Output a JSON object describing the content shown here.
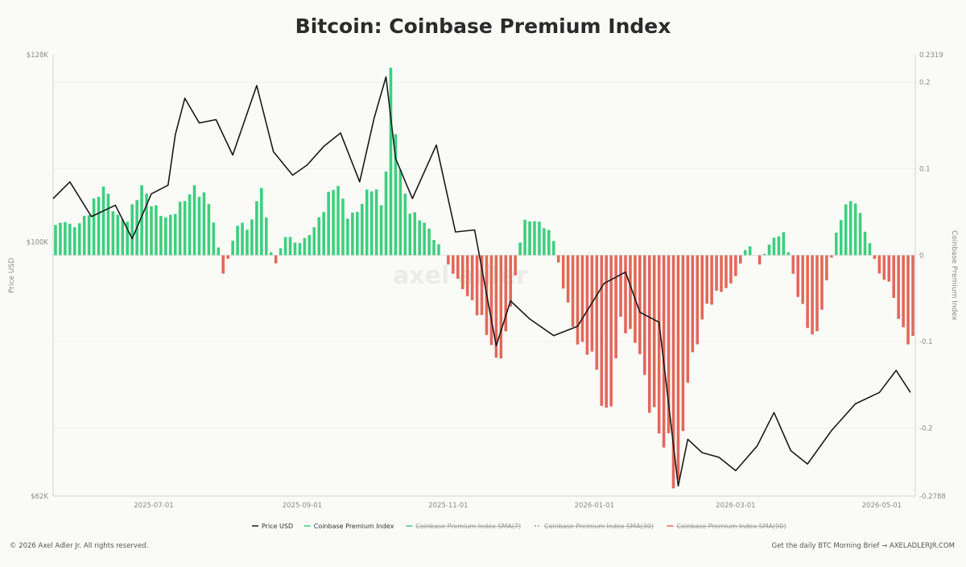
{
  "page": {
    "title": "Bitcoin: Coinbase Premium Index",
    "footer_left": "© 2026 Axel Adler Jr. All rights reserved.",
    "footer_right": "Get the daily BTC Morning Brief → AXELADLERJR.COM",
    "watermark": "axel adler"
  },
  "chart_data": {
    "type": "line+bar",
    "title": "Bitcoin: Coinbase Premium Index",
    "x_ticks": [
      "2025-07-01",
      "2025-09-01",
      "2025-11-01",
      "2026-01-01",
      "2026-03-01",
      "2026-05-01"
    ],
    "x_range": [
      "2025-05-20",
      "2026-05-15"
    ],
    "y_left": {
      "label": "Price USD",
      "ticks": [
        "$62K",
        "$100K",
        "$128K"
      ],
      "range": [
        62000,
        128000
      ]
    },
    "y_right": {
      "label": "Coinbase Premium Index",
      "ticks": [
        "0.2319",
        "0.2",
        "0.1",
        "0",
        "-0.1",
        "-0.2",
        "-0.2788"
      ],
      "range": [
        -0.2788,
        0.2319
      ]
    },
    "legend": [
      {
        "name": "Price USD",
        "color": "#1a1a1a",
        "active": true
      },
      {
        "name": "Coinbase Premium Index",
        "color": "#3ccf7e",
        "active": true
      },
      {
        "name": "Coinbase Premium Index SMA(7)",
        "color": "#3ccf7e",
        "active": false
      },
      {
        "name": "Coinbase Premium Index SMA(30)",
        "color": "#999999",
        "active": false
      },
      {
        "name": "Coinbase Premium Index SMA(90)",
        "color": "#e2685a",
        "active": false
      }
    ],
    "colors": {
      "positive": "#3ccf7e",
      "negative": "#e2685a",
      "price": "#1a1a1a"
    },
    "price_series": {
      "name": "Price USD",
      "points": [
        [
          "2025-05-20",
          106500
        ],
        [
          "2025-05-27",
          109000
        ],
        [
          "2025-06-05",
          103800
        ],
        [
          "2025-06-15",
          105500
        ],
        [
          "2025-06-22",
          100500
        ],
        [
          "2025-06-30",
          107200
        ],
        [
          "2025-07-07",
          108500
        ],
        [
          "2025-07-10",
          116000
        ],
        [
          "2025-07-14",
          121500
        ],
        [
          "2025-07-20",
          117800
        ],
        [
          "2025-07-27",
          118300
        ],
        [
          "2025-08-03",
          113000
        ],
        [
          "2025-08-13",
          123400
        ],
        [
          "2025-08-20",
          113500
        ],
        [
          "2025-08-28",
          110000
        ],
        [
          "2025-09-03",
          111500
        ],
        [
          "2025-09-10",
          114300
        ],
        [
          "2025-09-17",
          116300
        ],
        [
          "2025-09-25",
          109000
        ],
        [
          "2025-10-01",
          118500
        ],
        [
          "2025-10-06",
          124700
        ],
        [
          "2025-10-10",
          112500
        ],
        [
          "2025-10-17",
          106500
        ],
        [
          "2025-10-27",
          114500
        ],
        [
          "2025-11-04",
          101500
        ],
        [
          "2025-11-12",
          101800
        ],
        [
          "2025-11-21",
          84500
        ],
        [
          "2025-11-27",
          91200
        ],
        [
          "2025-12-05",
          88500
        ],
        [
          "2025-12-15",
          86000
        ],
        [
          "2025-12-25",
          87400
        ],
        [
          "2026-01-05",
          93800
        ],
        [
          "2026-01-14",
          95500
        ],
        [
          "2026-01-20",
          89500
        ],
        [
          "2026-01-28",
          88000
        ],
        [
          "2026-02-05",
          63500
        ],
        [
          "2026-02-09",
          70500
        ],
        [
          "2026-02-15",
          68500
        ],
        [
          "2026-02-22",
          67800
        ],
        [
          "2026-03-01",
          65800
        ],
        [
          "2026-03-10",
          69500
        ],
        [
          "2026-03-17",
          74500
        ],
        [
          "2026-03-24",
          68800
        ],
        [
          "2026-03-31",
          66800
        ],
        [
          "2026-04-10",
          71800
        ],
        [
          "2026-04-20",
          75800
        ],
        [
          "2026-04-30",
          77500
        ],
        [
          "2026-05-07",
          80800
        ],
        [
          "2026-05-13",
          77500
        ]
      ]
    },
    "premium_series": {
      "name": "Coinbase Premium Index",
      "points": [
        [
          "2025-05-20",
          0.025
        ],
        [
          "2025-05-25",
          0.035
        ],
        [
          "2025-05-30",
          0.03
        ],
        [
          "2025-06-05",
          0.045
        ],
        [
          "2025-06-10",
          0.065
        ],
        [
          "2025-06-15",
          0.045
        ],
        [
          "2025-06-20",
          0.035
        ],
        [
          "2025-06-25",
          0.065
        ],
        [
          "2025-06-30",
          0.05
        ],
        [
          "2025-07-05",
          0.04
        ],
        [
          "2025-07-10",
          0.045
        ],
        [
          "2025-07-15",
          0.055
        ],
        [
          "2025-07-20",
          0.065
        ],
        [
          "2025-07-25",
          0.05
        ],
        [
          "2025-07-30",
          -0.02
        ],
        [
          "2025-08-05",
          0.03
        ],
        [
          "2025-08-10",
          0.025
        ],
        [
          "2025-08-15",
          0.075
        ],
        [
          "2025-08-20",
          -0.015
        ],
        [
          "2025-08-25",
          0.02
        ],
        [
          "2025-08-30",
          0.01
        ],
        [
          "2025-09-05",
          0.025
        ],
        [
          "2025-09-10",
          0.045
        ],
        [
          "2025-09-15",
          0.07
        ],
        [
          "2025-09-20",
          0.04
        ],
        [
          "2025-09-25",
          0.05
        ],
        [
          "2025-09-30",
          0.07
        ],
        [
          "2025-10-05",
          0.04
        ],
        [
          "2025-10-08",
          0.17
        ],
        [
          "2025-10-12",
          0.09
        ],
        [
          "2025-10-16",
          0.045
        ],
        [
          "2025-10-22",
          0.03
        ],
        [
          "2025-10-28",
          0.01
        ],
        [
          "2025-11-03",
          -0.02
        ],
        [
          "2025-11-08",
          -0.035
        ],
        [
          "2025-11-14",
          -0.055
        ],
        [
          "2025-11-19",
          -0.09
        ],
        [
          "2025-11-22",
          -0.125
        ],
        [
          "2025-11-27",
          -0.05
        ],
        [
          "2025-12-02",
          0.03
        ],
        [
          "2025-12-08",
          0.035
        ],
        [
          "2025-12-14",
          0.025
        ],
        [
          "2025-12-20",
          -0.04
        ],
        [
          "2025-12-26",
          -0.09
        ],
        [
          "2026-01-01",
          -0.11
        ],
        [
          "2026-01-06",
          -0.17
        ],
        [
          "2026-01-12",
          -0.06
        ],
        [
          "2026-01-18",
          -0.09
        ],
        [
          "2026-01-24",
          -0.15
        ],
        [
          "2026-01-30",
          -0.17
        ],
        [
          "2026-02-05",
          -0.23
        ],
        [
          "2026-02-10",
          -0.12
        ],
        [
          "2026-02-16",
          -0.05
        ],
        [
          "2026-02-22",
          -0.035
        ],
        [
          "2026-02-28",
          -0.03
        ],
        [
          "2026-03-06",
          0.012
        ],
        [
          "2026-03-11",
          -0.008
        ],
        [
          "2026-03-16",
          0.015
        ],
        [
          "2026-03-21",
          0.025
        ],
        [
          "2026-03-26",
          -0.03
        ],
        [
          "2026-03-31",
          -0.065
        ],
        [
          "2026-04-04",
          -0.08
        ],
        [
          "2026-04-07",
          -0.04
        ],
        [
          "2026-04-13",
          0.035
        ],
        [
          "2026-04-19",
          0.055
        ],
        [
          "2026-04-25",
          0.02
        ],
        [
          "2026-04-30",
          -0.02
        ],
        [
          "2026-05-05",
          -0.03
        ],
        [
          "2026-05-10",
          -0.075
        ],
        [
          "2026-05-15",
          -0.085
        ]
      ]
    }
  }
}
